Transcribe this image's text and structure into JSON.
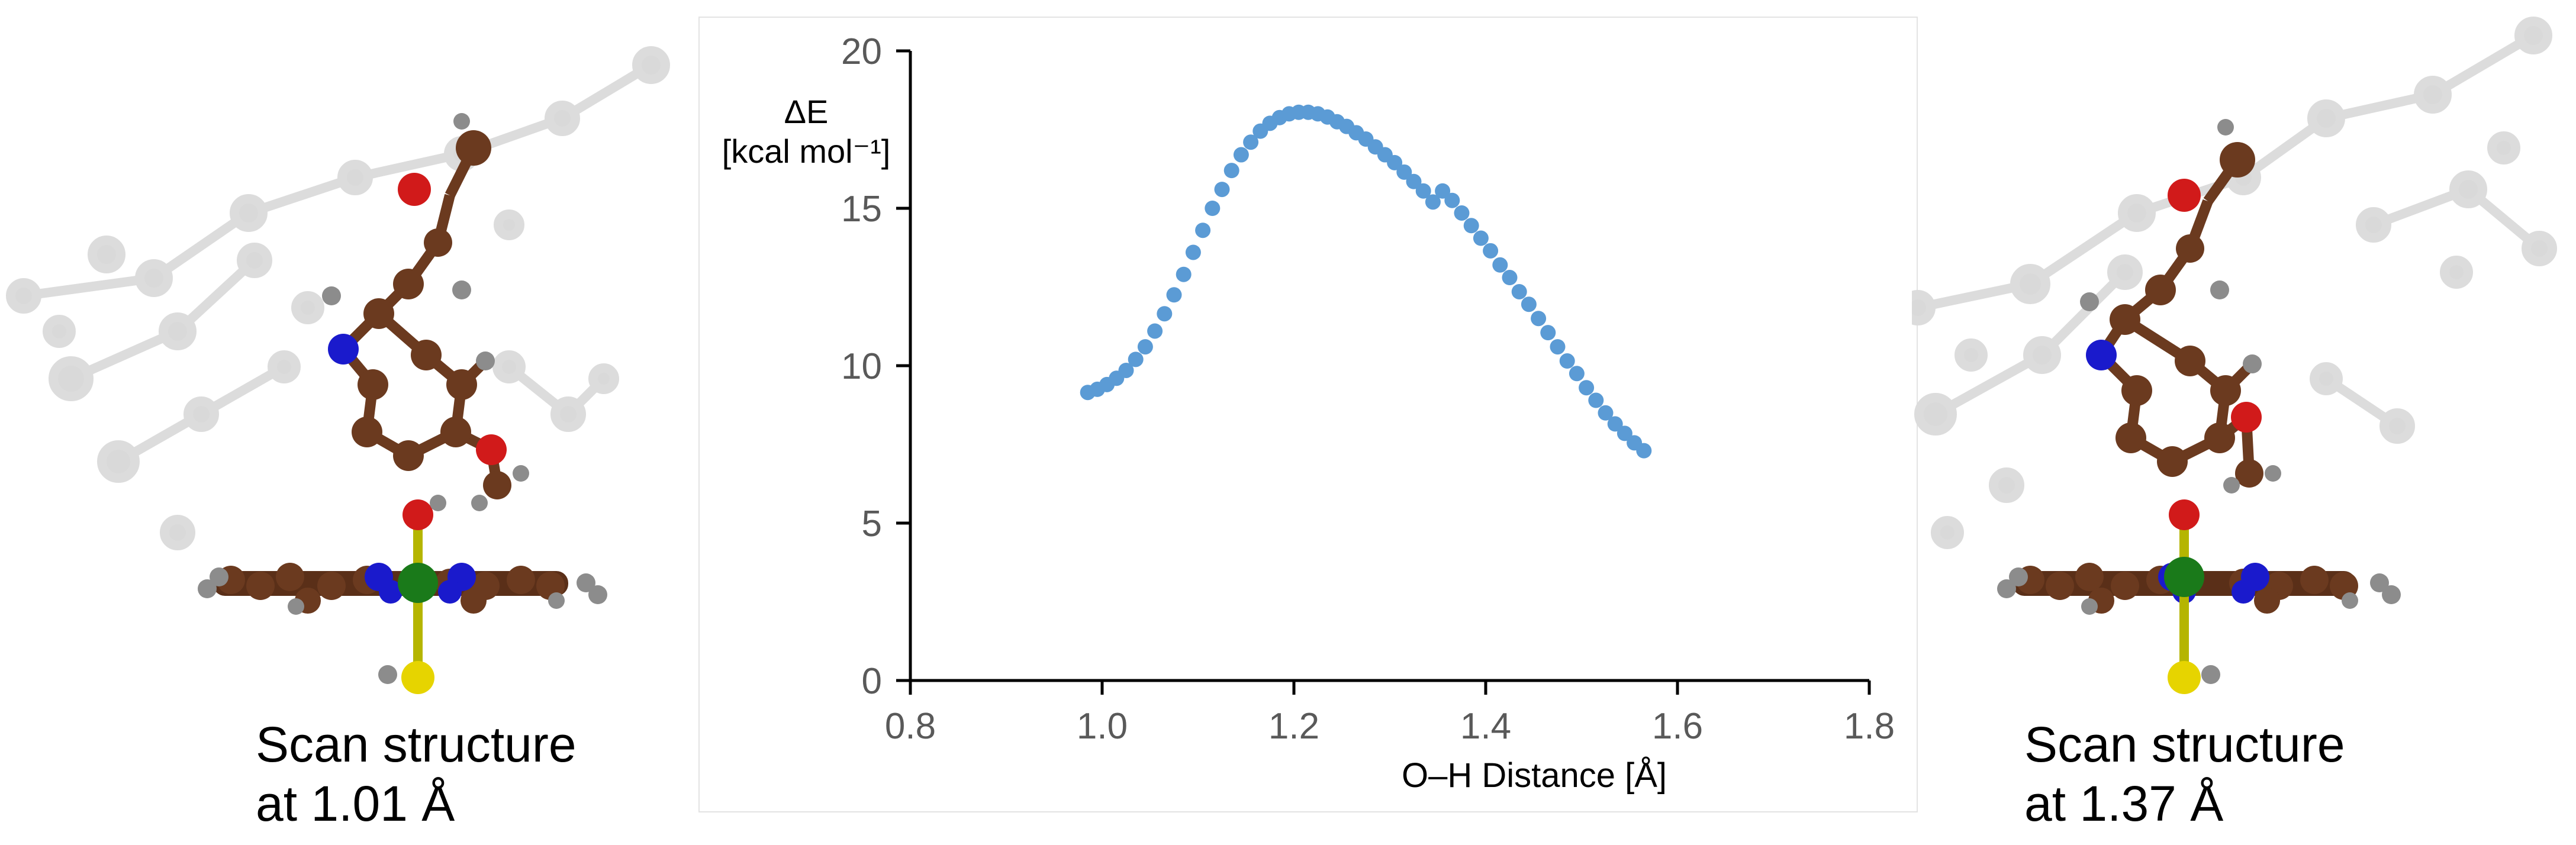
{
  "left_structure": {
    "caption_line1": "Scan structure",
    "caption_line2": "at 1.01 Å"
  },
  "right_structure": {
    "caption_line1": "Scan structure",
    "caption_line2": "at 1.37 Å"
  },
  "colors": {
    "point": "#5b9bd5",
    "axis": "#000000",
    "tick_label": "#595959",
    "carbon": "#6b3a1f",
    "nitrogen": "#1a1acc",
    "oxygen": "#d11a1a",
    "metal": "#1a7a1a",
    "sulfur": "#e6d400",
    "hydrogen": "#8c8c8c",
    "background_atom": "#d9d9d9"
  },
  "chart_data": {
    "type": "scatter",
    "title": "",
    "ylabel_line1": "ΔE",
    "ylabel_line2": "[kcal mol⁻¹]",
    "xlabel": "O–H Distance [Å]",
    "xlim": [
      0.8,
      1.8
    ],
    "ylim": [
      0,
      20
    ],
    "xticks": [
      "0.8",
      "1.0",
      "1.2",
      "1.4",
      "1.6",
      "1.8"
    ],
    "yticks": [
      "0",
      "5",
      "10",
      "15",
      "20"
    ],
    "grid": false,
    "legend": "none",
    "series": [
      {
        "x": [
          0.985,
          0.995,
          1.005,
          1.015,
          1.025,
          1.035,
          1.045,
          1.055,
          1.065,
          1.075,
          1.085,
          1.095,
          1.105,
          1.115,
          1.125,
          1.135,
          1.145,
          1.155,
          1.165,
          1.175,
          1.185,
          1.195,
          1.205,
          1.215,
          1.225,
          1.235,
          1.245,
          1.255,
          1.265,
          1.275,
          1.285,
          1.295,
          1.305,
          1.315,
          1.325,
          1.335,
          1.345,
          1.355,
          1.365,
          1.375,
          1.385,
          1.395,
          1.405,
          1.415,
          1.425,
          1.435,
          1.445,
          1.455,
          1.465,
          1.475,
          1.485,
          1.495,
          1.505,
          1.515,
          1.525,
          1.535,
          1.545,
          1.555,
          1.565
        ],
        "y": [
          9.15,
          9.25,
          9.4,
          9.6,
          9.85,
          10.2,
          10.6,
          11.1,
          11.65,
          12.25,
          12.9,
          13.6,
          14.3,
          15.0,
          15.6,
          16.2,
          16.7,
          17.1,
          17.45,
          17.7,
          17.88,
          18.0,
          18.05,
          18.05,
          18.0,
          17.9,
          17.75,
          17.6,
          17.4,
          17.2,
          16.95,
          16.7,
          16.45,
          16.15,
          15.85,
          15.55,
          15.2,
          15.55,
          15.25,
          14.85,
          14.45,
          14.05,
          13.65,
          13.2,
          12.8,
          12.35,
          11.95,
          11.5,
          11.05,
          10.6,
          10.15,
          9.75,
          9.3,
          8.9,
          8.5,
          8.15,
          7.85,
          7.55,
          7.3
        ]
      }
    ]
  }
}
